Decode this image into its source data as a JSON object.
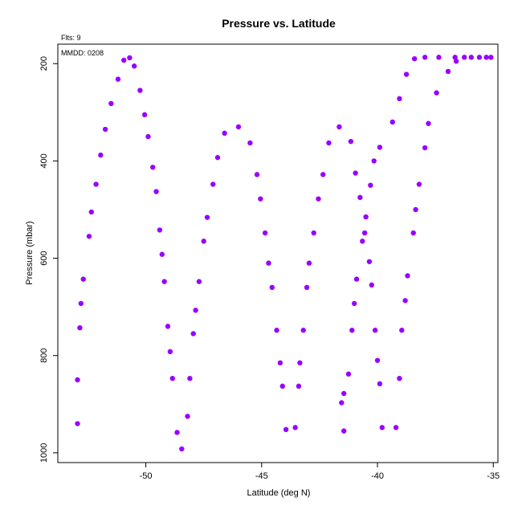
{
  "chart_data": {
    "type": "scatter",
    "title": "Pressure vs. Latitude",
    "xlabel": "Latitude (deg N)",
    "ylabel": "Pressure (mbar)",
    "xlim": [
      -53.8,
      -34.8
    ],
    "ylim": [
      1020,
      160
    ],
    "y_inverted": true,
    "grid": false,
    "xticks": [
      -50,
      -45,
      -40,
      -35
    ],
    "yticks": [
      200,
      400,
      600,
      800,
      1000
    ],
    "point_color": "#9900ff",
    "annotations": [
      "Flts: 9",
      "MMDD: 0208"
    ],
    "points": [
      [
        -52.95,
        940
      ],
      [
        -52.95,
        850
      ],
      [
        -52.85,
        743
      ],
      [
        -52.8,
        693
      ],
      [
        -52.7,
        643
      ],
      [
        -52.45,
        555
      ],
      [
        -52.35,
        505
      ],
      [
        -52.15,
        448
      ],
      [
        -51.95,
        388
      ],
      [
        -51.75,
        335
      ],
      [
        -51.5,
        282
      ],
      [
        -51.2,
        232
      ],
      [
        -50.95,
        193
      ],
      [
        -50.7,
        188
      ],
      [
        -50.5,
        205
      ],
      [
        -50.25,
        255
      ],
      [
        -50.05,
        305
      ],
      [
        -49.9,
        350
      ],
      [
        -49.7,
        413
      ],
      [
        -49.55,
        463
      ],
      [
        -49.4,
        542
      ],
      [
        -49.3,
        592
      ],
      [
        -49.2,
        648
      ],
      [
        -49.05,
        740
      ],
      [
        -48.95,
        792
      ],
      [
        -48.85,
        847
      ],
      [
        -48.65,
        958
      ],
      [
        -48.45,
        992
      ],
      [
        -48.2,
        925
      ],
      [
        -48.1,
        847
      ],
      [
        -47.95,
        755
      ],
      [
        -47.85,
        707
      ],
      [
        -47.7,
        648
      ],
      [
        -47.5,
        565
      ],
      [
        -47.35,
        516
      ],
      [
        -47.1,
        448
      ],
      [
        -46.9,
        393
      ],
      [
        -46.6,
        343
      ],
      [
        -46.0,
        330
      ],
      [
        -45.5,
        363
      ],
      [
        -45.2,
        428
      ],
      [
        -45.05,
        478
      ],
      [
        -44.85,
        548
      ],
      [
        -44.7,
        610
      ],
      [
        -44.55,
        660
      ],
      [
        -44.35,
        748
      ],
      [
        -44.2,
        815
      ],
      [
        -44.1,
        863
      ],
      [
        -43.95,
        952
      ],
      [
        -43.55,
        948
      ],
      [
        -43.4,
        863
      ],
      [
        -43.35,
        815
      ],
      [
        -43.2,
        748
      ],
      [
        -43.05,
        660
      ],
      [
        -42.95,
        610
      ],
      [
        -42.75,
        548
      ],
      [
        -42.55,
        478
      ],
      [
        -42.35,
        428
      ],
      [
        -42.1,
        363
      ],
      [
        -41.65,
        330
      ],
      [
        -41.55,
        897
      ],
      [
        -41.45,
        878
      ],
      [
        -41.45,
        955
      ],
      [
        -41.25,
        838
      ],
      [
        -41.15,
        360
      ],
      [
        -41.1,
        748
      ],
      [
        -41.0,
        693
      ],
      [
        -40.95,
        425
      ],
      [
        -40.9,
        643
      ],
      [
        -40.75,
        475
      ],
      [
        -40.65,
        565
      ],
      [
        -40.55,
        548
      ],
      [
        -40.5,
        515
      ],
      [
        -40.35,
        607
      ],
      [
        -40.3,
        450
      ],
      [
        -40.25,
        655
      ],
      [
        -40.15,
        400
      ],
      [
        -40.1,
        748
      ],
      [
        -40.0,
        810
      ],
      [
        -39.9,
        858
      ],
      [
        -39.9,
        372
      ],
      [
        -39.8,
        948
      ],
      [
        -39.35,
        320
      ],
      [
        -39.2,
        948
      ],
      [
        -39.05,
        847
      ],
      [
        -39.05,
        272
      ],
      [
        -38.95,
        748
      ],
      [
        -38.8,
        687
      ],
      [
        -38.75,
        222
      ],
      [
        -38.7,
        636
      ],
      [
        -38.45,
        548
      ],
      [
        -38.4,
        190
      ],
      [
        -38.35,
        500
      ],
      [
        -38.2,
        448
      ],
      [
        -37.95,
        187
      ],
      [
        -37.95,
        373
      ],
      [
        -37.8,
        323
      ],
      [
        -37.45,
        260
      ],
      [
        -37.35,
        187
      ],
      [
        -36.95,
        216
      ],
      [
        -36.65,
        187
      ],
      [
        -36.6,
        195
      ],
      [
        -36.25,
        187
      ],
      [
        -35.95,
        187
      ],
      [
        -35.6,
        187
      ],
      [
        -35.3,
        187
      ],
      [
        -35.1,
        187
      ]
    ]
  }
}
